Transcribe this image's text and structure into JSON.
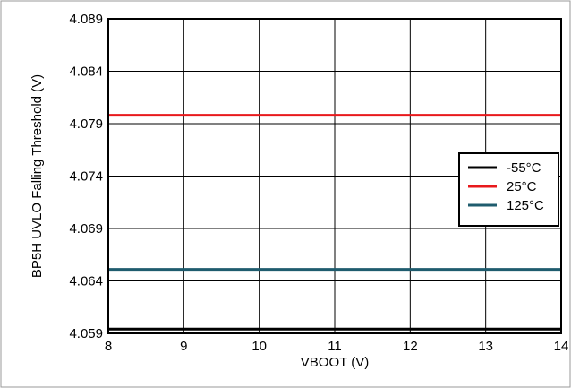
{
  "chart_data": {
    "type": "line",
    "title": "",
    "xlabel": "VBOOT (V)",
    "ylabel": "BP5H UVLO Falling Threshold (V)",
    "xlim": [
      8,
      14
    ],
    "ylim": [
      4.059,
      4.089
    ],
    "x_ticks": [
      "8",
      "9",
      "10",
      "11",
      "12",
      "13",
      "14"
    ],
    "y_ticks": [
      "4.059",
      "4.064",
      "4.069",
      "4.074",
      "4.079",
      "4.084",
      "4.089"
    ],
    "grid": true,
    "legend_position": "right",
    "series": [
      {
        "name": "-55°C",
        "color": "#000000",
        "x": [
          8,
          9,
          10,
          11,
          12,
          13,
          14
        ],
        "y": [
          4.0594,
          4.0594,
          4.0594,
          4.0594,
          4.0594,
          4.0594,
          4.0594
        ]
      },
      {
        "name": "25°C",
        "color": "#e8191c",
        "x": [
          8,
          9,
          10,
          11,
          12,
          13,
          14
        ],
        "y": [
          4.0798,
          4.0798,
          4.0798,
          4.0798,
          4.0798,
          4.0798,
          4.0798
        ]
      },
      {
        "name": "125°C",
        "color": "#1f5c6e",
        "x": [
          8,
          9,
          10,
          11,
          12,
          13,
          14
        ],
        "y": [
          4.0651,
          4.0651,
          4.0651,
          4.0651,
          4.0651,
          4.0651,
          4.0651
        ]
      }
    ]
  }
}
